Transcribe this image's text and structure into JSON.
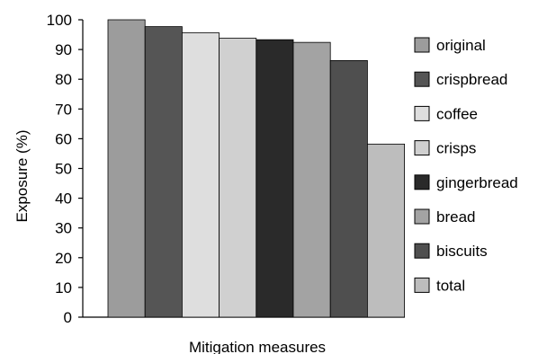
{
  "chart_data": {
    "type": "bar",
    "title": "",
    "xlabel": "Mitigation measures",
    "ylabel": "Exposure (%)",
    "ylim": [
      0,
      100
    ],
    "yticks": [
      0,
      10,
      20,
      30,
      40,
      50,
      60,
      70,
      80,
      90,
      100
    ],
    "grid": false,
    "legend_position": "right",
    "series": [
      {
        "name": "original",
        "value": 100,
        "color": "#9c9c9c"
      },
      {
        "name": "crispbread",
        "value": 97.7,
        "color": "#555555"
      },
      {
        "name": "coffee",
        "value": 95.6,
        "color": "#dedede"
      },
      {
        "name": "crisps",
        "value": 93.8,
        "color": "#d0d0d0"
      },
      {
        "name": "gingerbread",
        "value": 93.3,
        "color": "#2a2a2a"
      },
      {
        "name": "bread",
        "value": 92.4,
        "color": "#a3a3a3"
      },
      {
        "name": "biscuits",
        "value": 86.3,
        "color": "#4f4f4f"
      },
      {
        "name": "total",
        "value": 58.2,
        "color": "#bdbdbd"
      }
    ]
  }
}
